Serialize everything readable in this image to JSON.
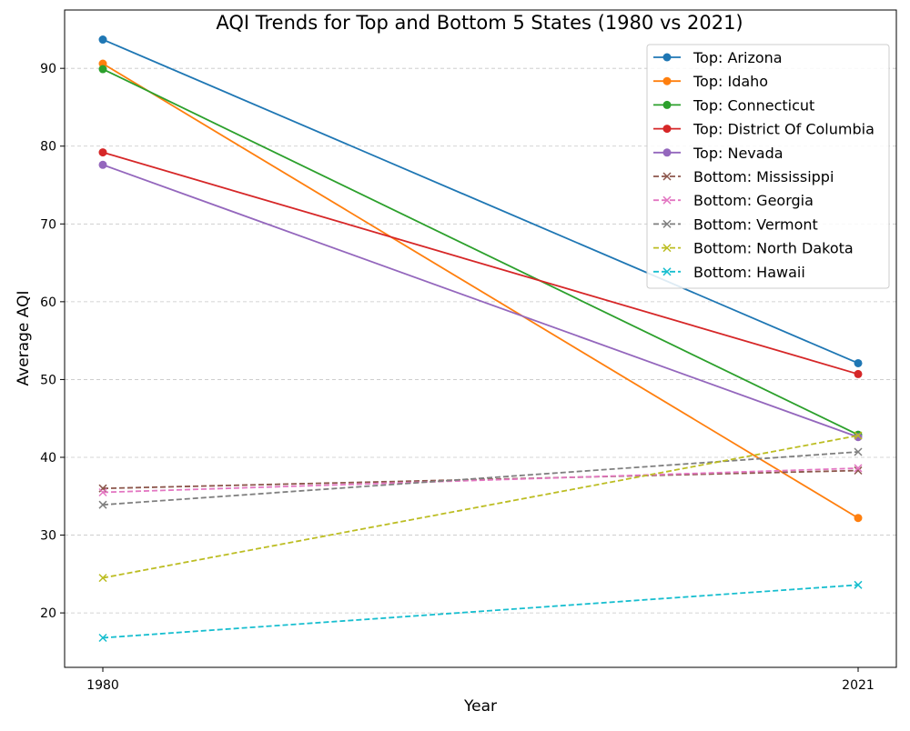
{
  "chart_data": {
    "type": "line",
    "title": "AQI Trends for Top and Bottom 5 States (1980 vs 2021)",
    "xlabel": "Year",
    "ylabel": "Average AQI",
    "x": [
      "1980",
      "2021"
    ],
    "ylim": [
      13,
      97.5
    ],
    "yticks": [
      20,
      30,
      40,
      50,
      60,
      70,
      80,
      90
    ],
    "grid": "y-dashed",
    "legend_position": "top-right",
    "series": [
      {
        "name": "Top: Arizona",
        "values": [
          93.7,
          52.1
        ],
        "color": "#1f77b4",
        "style": "solid",
        "marker": "circle"
      },
      {
        "name": "Top: Idaho",
        "values": [
          90.6,
          32.2
        ],
        "color": "#ff7f0e",
        "style": "solid",
        "marker": "circle"
      },
      {
        "name": "Top: Connecticut",
        "values": [
          89.9,
          42.9
        ],
        "color": "#2ca02c",
        "style": "solid",
        "marker": "circle"
      },
      {
        "name": "Top: District Of Columbia",
        "values": [
          79.2,
          50.7
        ],
        "color": "#d62728",
        "style": "solid",
        "marker": "circle"
      },
      {
        "name": "Top: Nevada",
        "values": [
          77.6,
          42.6
        ],
        "color": "#9467bd",
        "style": "solid",
        "marker": "circle"
      },
      {
        "name": "Bottom: Mississippi",
        "values": [
          36.0,
          38.3
        ],
        "color": "#8c564b",
        "style": "dashed",
        "marker": "x"
      },
      {
        "name": "Bottom: Georgia",
        "values": [
          35.5,
          38.6
        ],
        "color": "#e377c2",
        "style": "dashed",
        "marker": "x"
      },
      {
        "name": "Bottom: Vermont",
        "values": [
          33.9,
          40.7
        ],
        "color": "#7f7f7f",
        "style": "dashed",
        "marker": "x"
      },
      {
        "name": "Bottom: North Dakota",
        "values": [
          24.5,
          42.8
        ],
        "color": "#bcbd22",
        "style": "dashed",
        "marker": "x"
      },
      {
        "name": "Bottom: Hawaii",
        "values": [
          16.8,
          23.6
        ],
        "color": "#17becf",
        "style": "dashed",
        "marker": "x"
      }
    ]
  }
}
